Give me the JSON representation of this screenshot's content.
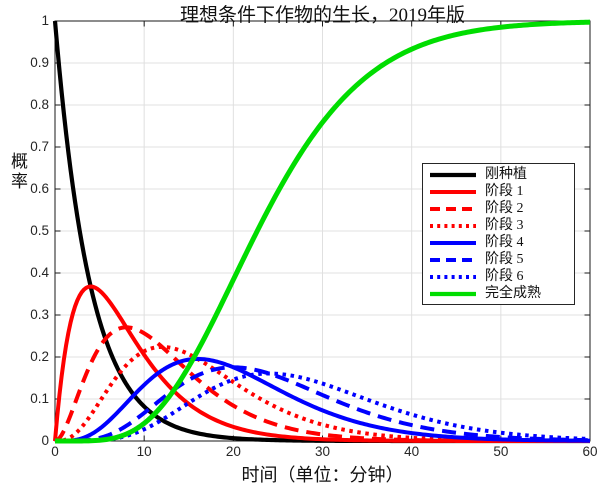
{
  "chart_data": {
    "type": "line",
    "title": "理想条件下作物的生长，2019年版",
    "xlabel": "时间（单位：分钟）",
    "ylabel": "概率",
    "xlim": [
      0,
      60
    ],
    "ylim": [
      0,
      1
    ],
    "x_tick_labels": [
      "0",
      "10",
      "20",
      "30",
      "40",
      "50",
      "60"
    ],
    "y_tick_labels": [
      "0",
      "0.1",
      "0.2",
      "0.3",
      "0.4",
      "0.5",
      "0.6",
      "0.7",
      "0.8",
      "0.9",
      "1"
    ],
    "grid": true,
    "legend_position": "middle-right",
    "model": "Poisson stage occupancy P_k(t) = exp(-lambda*t)*(lambda*t)^k/k! for k=0..6; mature(t) = 1 - sum_{k=0..5} P_k(t)",
    "lambda_per_min": 0.25,
    "t_start": 0,
    "t_end": 60,
    "t_step": 0.25,
    "series": [
      {
        "label": "刚种植",
        "color": "#000000",
        "line_style": "solid",
        "kind": "pmf",
        "k": 0,
        "width": 4.2
      },
      {
        "label": "阶段 1",
        "color": "#ff0000",
        "line_style": "solid",
        "kind": "pmf",
        "k": 1,
        "width": 4
      },
      {
        "label": "阶段 2",
        "color": "#ff0000",
        "line_style": "dashed",
        "kind": "pmf",
        "k": 2,
        "width": 4
      },
      {
        "label": "阶段 3",
        "color": "#ff0000",
        "line_style": "dotted",
        "kind": "pmf",
        "k": 3,
        "width": 4
      },
      {
        "label": "阶段 4",
        "color": "#0000ff",
        "line_style": "solid",
        "kind": "pmf",
        "k": 4,
        "width": 4
      },
      {
        "label": "阶段 5",
        "color": "#0000ff",
        "line_style": "dashed",
        "kind": "pmf",
        "k": 5,
        "width": 4
      },
      {
        "label": "阶段 6",
        "color": "#0000ff",
        "line_style": "dotted",
        "kind": "pmf",
        "k": 6,
        "width": 4
      },
      {
        "label": "完全成熟",
        "color": "#00dd00",
        "line_style": "solid",
        "kind": "survival",
        "k": 6,
        "width": 5
      }
    ],
    "key_points": [
      {
        "series": "刚种植",
        "t": 0,
        "p": 1.0
      },
      {
        "series": "阶段 1",
        "t": 4,
        "p": 0.368
      },
      {
        "series": "阶段 2",
        "t": 8,
        "p": 0.271
      },
      {
        "series": "阶段 3",
        "t": 12,
        "p": 0.224
      },
      {
        "series": "阶段 4",
        "t": 16,
        "p": 0.195
      },
      {
        "series": "阶段 5",
        "t": 20,
        "p": 0.176
      },
      {
        "series": "阶段 6",
        "t": 24,
        "p": 0.161
      },
      {
        "series": "完全成熟",
        "t": 22.5,
        "p": 0.5
      },
      {
        "series": "完全成熟",
        "t": 60,
        "p": 0.997
      }
    ],
    "colors": {
      "grid": "#e0e0e0",
      "axis": "#1a1a1a",
      "background": "#ffffff"
    }
  }
}
